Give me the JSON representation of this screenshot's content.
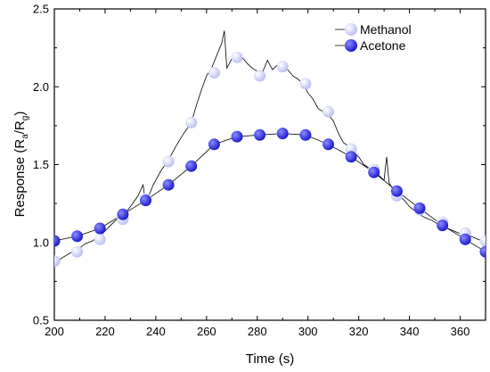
{
  "chart_data": {
    "type": "line",
    "xlabel": "Time (s)",
    "ylabel": "Response (R",
    "ylabel_sub_a": "a",
    "ylabel_sep": "/R",
    "ylabel_sub_g": "g",
    "ylabel_close": ")",
    "xlim": [
      200,
      370
    ],
    "ylim": [
      0.5,
      2.5
    ],
    "xticks": [
      200,
      220,
      240,
      260,
      280,
      300,
      320,
      340,
      360
    ],
    "xtick_labels": [
      "200",
      "220",
      "240",
      "260",
      "280",
      "300",
      "320",
      "340",
      "360"
    ],
    "yticks": [
      0.5,
      1.0,
      1.5,
      2.0,
      2.5
    ],
    "ytick_labels": [
      "0.5",
      "1.0",
      "1.5",
      "2.0",
      "2.5"
    ],
    "grid": false,
    "legend_position": "top-right",
    "series": [
      {
        "name": "Methanol",
        "color": "#b8bcf0",
        "marker_x": [
          200,
          209,
          218,
          227,
          236,
          245,
          254,
          263,
          272,
          281,
          290,
          299,
          308,
          317,
          326,
          335,
          344,
          353,
          362,
          370
        ],
        "marker_y": [
          0.88,
          0.94,
          1.02,
          1.15,
          1.28,
          1.52,
          1.77,
          2.09,
          2.19,
          2.07,
          2.13,
          2.02,
          1.84,
          1.6,
          1.47,
          1.3,
          1.21,
          1.13,
          1.06,
          1.01
        ],
        "line_x": [
          200,
          203,
          206,
          209,
          212,
          215,
          218,
          221,
          224,
          227,
          230,
          233,
          235,
          236,
          239,
          242,
          245,
          248,
          251,
          254,
          256,
          258,
          260,
          262,
          264,
          266,
          267,
          268,
          270,
          272,
          274,
          276,
          278,
          280,
          282,
          284,
          286,
          288,
          290,
          292,
          294,
          296,
          298,
          300,
          302,
          304,
          306,
          308,
          310,
          312,
          314,
          316,
          318,
          320,
          322,
          324,
          326,
          328,
          330,
          331,
          332,
          334,
          336,
          338,
          340,
          343,
          346,
          349,
          352,
          355,
          358,
          361,
          364,
          367,
          370
        ],
        "line_y": [
          0.86,
          0.9,
          0.93,
          0.95,
          0.99,
          1.01,
          1.04,
          1.09,
          1.14,
          1.17,
          1.23,
          1.3,
          1.37,
          1.25,
          1.37,
          1.46,
          1.53,
          1.62,
          1.7,
          1.77,
          1.88,
          1.98,
          2.07,
          2.12,
          2.2,
          2.28,
          2.36,
          2.12,
          2.18,
          2.22,
          2.19,
          2.15,
          2.12,
          2.1,
          2.09,
          2.17,
          2.11,
          2.14,
          2.12,
          2.11,
          2.07,
          2.05,
          2.02,
          1.96,
          1.92,
          1.86,
          1.84,
          1.82,
          1.78,
          1.7,
          1.64,
          1.62,
          1.58,
          1.55,
          1.5,
          1.48,
          1.45,
          1.43,
          1.4,
          1.55,
          1.38,
          1.33,
          1.3,
          1.27,
          1.23,
          1.19,
          1.16,
          1.14,
          1.11,
          1.09,
          1.07,
          1.05,
          1.04,
          1.02,
          1.0
        ]
      },
      {
        "name": "Acetone",
        "color": "#1414c8",
        "marker_x": [
          200,
          209,
          218,
          227,
          236,
          245,
          254,
          263,
          272,
          281,
          290,
          299,
          308,
          317,
          326,
          335,
          344,
          353,
          362,
          370
        ],
        "marker_y": [
          1.01,
          1.04,
          1.09,
          1.18,
          1.27,
          1.37,
          1.49,
          1.63,
          1.68,
          1.69,
          1.7,
          1.69,
          1.63,
          1.55,
          1.45,
          1.33,
          1.22,
          1.11,
          1.02,
          0.94
        ]
      }
    ]
  }
}
